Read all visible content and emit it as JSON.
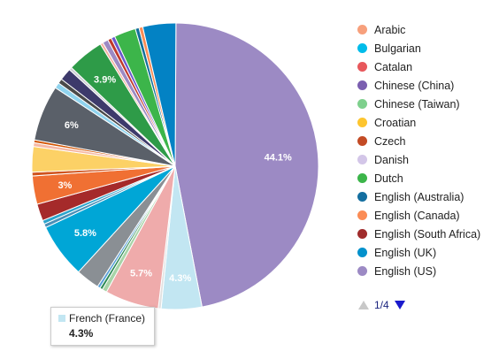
{
  "chart_data": {
    "type": "pie",
    "slices": [
      {
        "label": "English (US)",
        "value": 44.1,
        "color": "#9c8ac4",
        "shown_label": "44.1%"
      },
      {
        "label": "French (France)",
        "value": 4.3,
        "color": "#c2e6f2",
        "shown_label": "4.3%"
      },
      {
        "label": "",
        "value": 0.3,
        "color": "#e0e0e0",
        "shown_label": ""
      },
      {
        "label": "",
        "value": 5.7,
        "color": "#efabab",
        "shown_label": "5.7%"
      },
      {
        "label": "",
        "value": 0.5,
        "color": "#a8d4a8",
        "shown_label": ""
      },
      {
        "label": "",
        "value": 0.3,
        "color": "#2e8b57",
        "shown_label": ""
      },
      {
        "label": "",
        "value": 0.3,
        "color": "#5aa0d8",
        "shown_label": ""
      },
      {
        "label": "",
        "value": 2.5,
        "color": "#8a8f94",
        "shown_label": ""
      },
      {
        "label": "",
        "value": 5.8,
        "color": "#00a6d6",
        "shown_label": "5.8%"
      },
      {
        "label": "",
        "value": 0.4,
        "color": "#4a90b8",
        "shown_label": ""
      },
      {
        "label": "",
        "value": 0.4,
        "color": "#2ca4cc",
        "shown_label": ""
      },
      {
        "label": "",
        "value": 1.8,
        "color": "#a52a2a",
        "shown_label": ""
      },
      {
        "label": "",
        "value": 3.0,
        "color": "#f07033",
        "shown_label": "3%"
      },
      {
        "label": "",
        "value": 0.4,
        "color": "#d0541e",
        "shown_label": ""
      },
      {
        "label": "",
        "value": 2.7,
        "color": "#fcd166",
        "shown_label": ""
      },
      {
        "label": "",
        "value": 0.4,
        "color": "#f6b9a5",
        "shown_label": ""
      },
      {
        "label": "",
        "value": 0.3,
        "color": "#d35400",
        "shown_label": ""
      },
      {
        "label": "",
        "value": 5.9,
        "color": "#5a6069",
        "shown_label": "6%"
      },
      {
        "label": "",
        "value": 0.6,
        "color": "#8fd3ee",
        "shown_label": ""
      },
      {
        "label": "",
        "value": 0.5,
        "color": "#4a4a4a",
        "shown_label": ""
      },
      {
        "label": "",
        "value": 1.3,
        "color": "#3d3a6b",
        "shown_label": ""
      },
      {
        "label": "",
        "value": 0.3,
        "color": "#cdd0d4",
        "shown_label": ""
      },
      {
        "label": "",
        "value": 3.9,
        "color": "#2e9b48",
        "shown_label": "3.9%"
      },
      {
        "label": "",
        "value": 0.3,
        "color": "#f4b3a3",
        "shown_label": ""
      },
      {
        "label": "",
        "value": 0.6,
        "color": "#9c8ac4",
        "shown_label": ""
      },
      {
        "label": "",
        "value": 0.4,
        "color": "#c0392b",
        "shown_label": ""
      },
      {
        "label": "",
        "value": 0.4,
        "color": "#6a5acd",
        "shown_label": ""
      },
      {
        "label": "",
        "value": 2.3,
        "color": "#3cb54a",
        "shown_label": ""
      },
      {
        "label": "",
        "value": 0.4,
        "color": "#136f9b",
        "shown_label": ""
      },
      {
        "label": "",
        "value": 0.4,
        "color": "#fb8c55",
        "shown_label": ""
      },
      {
        "label": "",
        "value": 3.5,
        "color": "#0382c4",
        "shown_label": ""
      }
    ],
    "legend_placement": "right",
    "legend": [
      {
        "label": "Arabic",
        "color": "#f7a07c"
      },
      {
        "label": "Bulgarian",
        "color": "#00bcea"
      },
      {
        "label": "Catalan",
        "color": "#e8585c"
      },
      {
        "label": "Chinese (China)",
        "color": "#7b5fb0"
      },
      {
        "label": "Chinese (Taiwan)",
        "color": "#7ed08d"
      },
      {
        "label": "Croatian",
        "color": "#fdc52f"
      },
      {
        "label": "Czech",
        "color": "#c34b25"
      },
      {
        "label": "Danish",
        "color": "#d3c6e8"
      },
      {
        "label": "Dutch",
        "color": "#3cb54a"
      },
      {
        "label": "English (Australia)",
        "color": "#146fa0"
      },
      {
        "label": "English (Canada)",
        "color": "#fb8c55"
      },
      {
        "label": "English (South Africa)",
        "color": "#a02c2c"
      },
      {
        "label": "English (UK)",
        "color": "#0391cc"
      },
      {
        "label": "English (US)",
        "color": "#9c8ac4"
      }
    ],
    "tooltip": {
      "label": "French (France)",
      "value": "4.3%"
    }
  },
  "pager": {
    "text": "1/4"
  }
}
